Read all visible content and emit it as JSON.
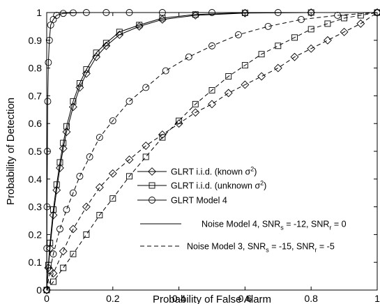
{
  "chart_data": {
    "type": "line",
    "title": "",
    "xlabel": "Probability of False Alarm",
    "ylabel": "Probability of Detection",
    "xlim": [
      0,
      1
    ],
    "ylim": [
      0,
      1
    ],
    "xticks": [
      0,
      0.2,
      0.4,
      0.6,
      0.8,
      1
    ],
    "xtick_labels": [
      "0",
      "0.2",
      "0.4",
      "0.6",
      "0.8",
      "1"
    ],
    "yticks": [
      0,
      0.1,
      0.2,
      0.3,
      0.4,
      0.5,
      0.6,
      0.7,
      0.8,
      0.9,
      1
    ],
    "ytick_labels": [
      "0",
      "0.1",
      "0.2",
      "0.3",
      "0.4",
      "0.5",
      "0.6",
      "0.7",
      "0.8",
      "0.9",
      "1"
    ],
    "grid": false,
    "legend_placement": "bottom-right",
    "legend_marker_entries": [
      {
        "marker": "diamond",
        "text_before": "GLRT i.i.d. (known ",
        "sigma": "σ",
        "power": "2",
        "text_after": ")"
      },
      {
        "marker": "square",
        "text_before": "GLRT i.i.d. (unknown ",
        "sigma": "σ",
        "power": "2",
        "text_after": ")"
      },
      {
        "marker": "circle",
        "text_before": "GLRT Model 4",
        "sigma": "",
        "power": "",
        "text_after": ""
      }
    ],
    "legend_line_entries": [
      {
        "style": "solid",
        "lead": "Noise Model 4, SNR",
        "sub1": "s",
        "mid": " = -12, SNR",
        "sub2": "r",
        "tail": " = 0"
      },
      {
        "style": "dashed",
        "lead": "Noise Model 3, SNR",
        "sub1": "s",
        "mid": " = -15, SNR",
        "sub2": "r",
        "tail": " = -5"
      }
    ],
    "series": [
      {
        "marker": "circle",
        "style": "solid",
        "x": [
          0,
          0.0005,
          0.001,
          0.002,
          0.003,
          0.005,
          0.008,
          0.012,
          0.02,
          0.03,
          0.05,
          0.08,
          0.12,
          0.18,
          0.25,
          0.35,
          0.5,
          0.7,
          1.0
        ],
        "y": [
          0,
          0.15,
          0.3,
          0.5,
          0.68,
          0.82,
          0.9,
          0.955,
          0.975,
          0.99,
          0.997,
          0.999,
          1,
          1,
          1,
          1,
          1,
          1,
          1
        ]
      },
      {
        "marker": "diamond",
        "style": "solid",
        "x": [
          0,
          0.005,
          0.01,
          0.02,
          0.03,
          0.04,
          0.05,
          0.06,
          0.08,
          0.1,
          0.12,
          0.15,
          0.18,
          0.22,
          0.28,
          0.35,
          0.45,
          0.6,
          0.8,
          1.0
        ],
        "y": [
          0,
          0.08,
          0.15,
          0.27,
          0.36,
          0.44,
          0.51,
          0.57,
          0.66,
          0.73,
          0.78,
          0.84,
          0.88,
          0.92,
          0.95,
          0.975,
          0.99,
          0.998,
          1,
          1
        ]
      },
      {
        "marker": "square",
        "style": "solid",
        "x": [
          0,
          0.005,
          0.01,
          0.02,
          0.03,
          0.04,
          0.05,
          0.06,
          0.08,
          0.1,
          0.12,
          0.15,
          0.18,
          0.22,
          0.28,
          0.35,
          0.45,
          0.6,
          0.8,
          1.0
        ],
        "y": [
          0,
          0.09,
          0.17,
          0.29,
          0.38,
          0.46,
          0.53,
          0.59,
          0.68,
          0.745,
          0.795,
          0.855,
          0.89,
          0.93,
          0.955,
          0.98,
          0.993,
          0.999,
          1,
          1
        ]
      },
      {
        "marker": "circle",
        "style": "dashed",
        "x": [
          0,
          0.01,
          0.02,
          0.04,
          0.06,
          0.08,
          0.1,
          0.13,
          0.16,
          0.2,
          0.25,
          0.3,
          0.36,
          0.43,
          0.5,
          0.58,
          0.67,
          0.77,
          0.88,
          1.0
        ],
        "y": [
          0,
          0.07,
          0.13,
          0.22,
          0.29,
          0.35,
          0.41,
          0.48,
          0.55,
          0.61,
          0.68,
          0.73,
          0.79,
          0.84,
          0.88,
          0.92,
          0.95,
          0.975,
          0.99,
          1
        ]
      },
      {
        "marker": "diamond",
        "style": "dashed",
        "x": [
          0,
          0.02,
          0.05,
          0.08,
          0.12,
          0.16,
          0.2,
          0.25,
          0.3,
          0.35,
          0.4,
          0.45,
          0.5,
          0.55,
          0.6,
          0.65,
          0.7,
          0.75,
          0.8,
          0.85,
          0.9,
          0.95,
          1.0
        ],
        "y": [
          0,
          0.06,
          0.14,
          0.22,
          0.3,
          0.37,
          0.42,
          0.47,
          0.52,
          0.56,
          0.6,
          0.64,
          0.67,
          0.71,
          0.74,
          0.77,
          0.8,
          0.84,
          0.87,
          0.9,
          0.93,
          0.96,
          1
        ]
      },
      {
        "marker": "square",
        "style": "dashed",
        "x": [
          0,
          0.02,
          0.05,
          0.08,
          0.12,
          0.16,
          0.2,
          0.25,
          0.3,
          0.35,
          0.4,
          0.45,
          0.5,
          0.55,
          0.6,
          0.65,
          0.7,
          0.75,
          0.8,
          0.85,
          0.9,
          0.95,
          1.0
        ],
        "y": [
          0,
          0.03,
          0.08,
          0.13,
          0.2,
          0.27,
          0.33,
          0.41,
          0.48,
          0.55,
          0.61,
          0.67,
          0.72,
          0.77,
          0.81,
          0.85,
          0.88,
          0.91,
          0.94,
          0.96,
          0.98,
          0.99,
          1
        ]
      }
    ]
  }
}
